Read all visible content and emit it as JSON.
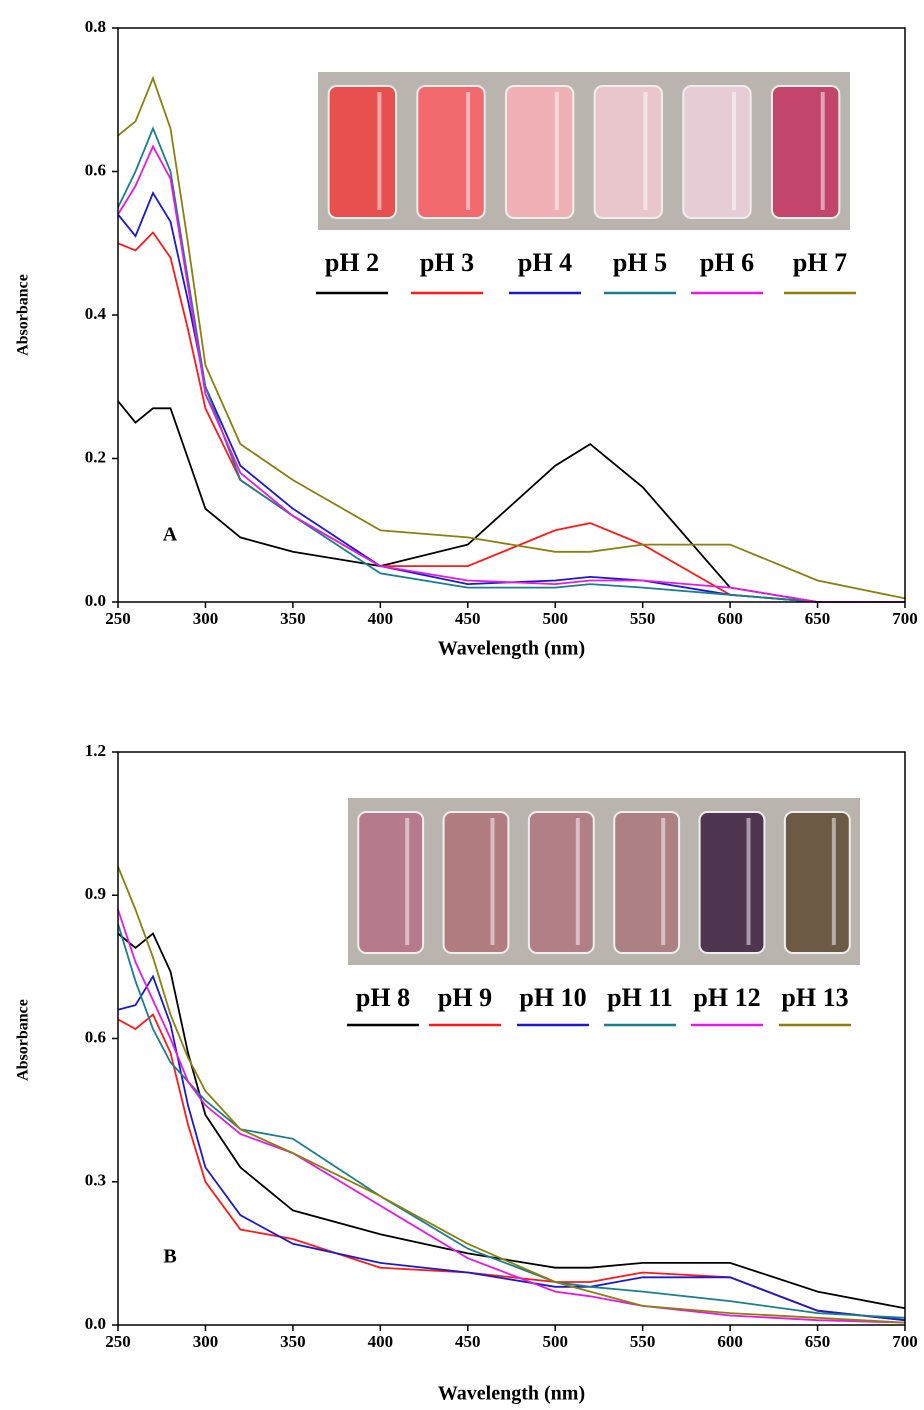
{
  "chart_data": [
    {
      "type": "line",
      "annotation": "A",
      "x_label": "Wavelength (nm)",
      "y_label": "Absorbance",
      "x": [
        250,
        260,
        270,
        280,
        290,
        300,
        320,
        350,
        400,
        450,
        500,
        520,
        550,
        600,
        650,
        700
      ],
      "xlim": [
        250,
        700
      ],
      "xticks": [
        250,
        300,
        350,
        400,
        450,
        500,
        550,
        600,
        650,
        700
      ],
      "ylim": [
        0,
        0.8
      ],
      "yticks": [
        {
          "value": 0,
          "label": "0.0"
        },
        0.2,
        0.4,
        0.6,
        0.8
      ],
      "series": [
        {
          "name": "pH 2",
          "color": "#000000",
          "values": [
            0.28,
            0.25,
            0.27,
            0.27,
            0.2,
            0.13,
            0.09,
            0.07,
            0.05,
            0.08,
            0.19,
            0.22,
            0.16,
            0.02,
            0,
            0
          ]
        },
        {
          "name": "pH 3",
          "color": "#ff1a1a",
          "values": [
            0.5,
            0.49,
            0.515,
            0.48,
            0.38,
            0.27,
            0.17,
            0.12,
            0.05,
            0.05,
            0.1,
            0.11,
            0.08,
            0.01,
            0,
            0
          ]
        },
        {
          "name": "pH 4",
          "color": "#1a1acc",
          "values": [
            0.54,
            0.51,
            0.57,
            0.53,
            0.42,
            0.3,
            0.19,
            0.13,
            0.05,
            0.025,
            0.03,
            0.035,
            0.03,
            0.01,
            0,
            0
          ]
        },
        {
          "name": "pH 5",
          "color": "#1a7f8c",
          "values": [
            0.55,
            0.6,
            0.66,
            0.6,
            0.45,
            0.3,
            0.17,
            0.12,
            0.04,
            0.02,
            0.02,
            0.025,
            0.02,
            0.01,
            0,
            0
          ]
        },
        {
          "name": "pH 6",
          "color": "#e619e6",
          "values": [
            0.54,
            0.58,
            0.635,
            0.59,
            0.44,
            0.29,
            0.18,
            0.12,
            0.05,
            0.03,
            0.025,
            0.03,
            0.03,
            0.02,
            0,
            0
          ]
        },
        {
          "name": "pH 7",
          "color": "#8c7f0d",
          "values": [
            0.65,
            0.67,
            0.73,
            0.66,
            0.5,
            0.33,
            0.22,
            0.17,
            0.1,
            0.09,
            0.07,
            0.07,
            0.08,
            0.08,
            0.03,
            0.005
          ]
        }
      ]
    },
    {
      "type": "line",
      "annotation": "B",
      "x_label": "Wavelength (nm)",
      "y_label": "Absorbance",
      "x": [
        250,
        260,
        270,
        280,
        290,
        300,
        320,
        350,
        400,
        450,
        500,
        520,
        550,
        600,
        650,
        700
      ],
      "xlim": [
        250,
        700
      ],
      "xticks": [
        250,
        300,
        350,
        400,
        450,
        500,
        550,
        600,
        650,
        700
      ],
      "ylim": [
        0,
        1.2
      ],
      "yticks": [
        {
          "value": 0,
          "label": "0.0"
        },
        0.3,
        0.6,
        0.9,
        1.2
      ],
      "series": [
        {
          "name": "pH 8",
          "color": "#000000",
          "values": [
            0.82,
            0.79,
            0.82,
            0.74,
            0.57,
            0.44,
            0.33,
            0.24,
            0.19,
            0.15,
            0.12,
            0.12,
            0.13,
            0.13,
            0.07,
            0.035
          ]
        },
        {
          "name": "pH 9",
          "color": "#ff1a1a",
          "values": [
            0.64,
            0.62,
            0.65,
            0.57,
            0.42,
            0.3,
            0.2,
            0.18,
            0.12,
            0.11,
            0.09,
            0.09,
            0.11,
            0.1,
            0.03,
            0.01
          ]
        },
        {
          "name": "pH 10",
          "color": "#1a1acc",
          "values": [
            0.66,
            0.67,
            0.73,
            0.63,
            0.46,
            0.33,
            0.23,
            0.17,
            0.13,
            0.11,
            0.08,
            0.08,
            0.1,
            0.1,
            0.03,
            0.01
          ]
        },
        {
          "name": "pH 11",
          "color": "#1a7f8c",
          "values": [
            0.84,
            0.72,
            0.62,
            0.55,
            0.51,
            0.47,
            0.41,
            0.39,
            0.27,
            0.16,
            0.09,
            0.08,
            0.07,
            0.05,
            0.025,
            0.015
          ]
        },
        {
          "name": "pH 12",
          "color": "#e619e6",
          "values": [
            0.87,
            0.76,
            0.68,
            0.6,
            0.51,
            0.46,
            0.4,
            0.36,
            0.25,
            0.14,
            0.07,
            0.06,
            0.04,
            0.02,
            0.01,
            0.005
          ]
        },
        {
          "name": "pH 13",
          "color": "#8c7f0d",
          "values": [
            0.96,
            0.87,
            0.77,
            0.65,
            0.56,
            0.49,
            0.41,
            0.36,
            0.27,
            0.17,
            0.09,
            0.07,
            0.04,
            0.025,
            0.015,
            0.005
          ]
        }
      ]
    }
  ]
}
